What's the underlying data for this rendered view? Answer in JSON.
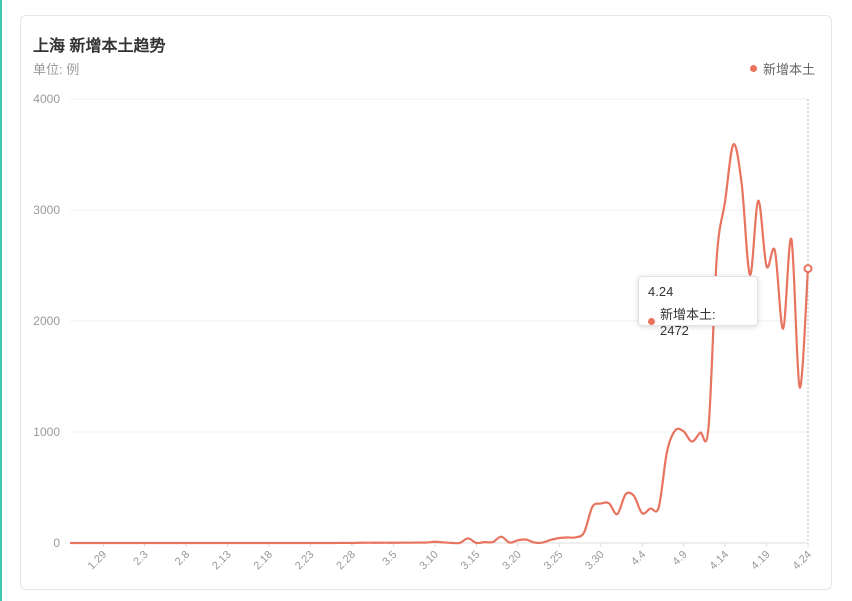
{
  "card": {
    "title": "上海 新增本土趋势",
    "subtitle": "单位: 例"
  },
  "colors": {
    "series": "#e8735f",
    "grid": "#f0f0f0",
    "axis": "#dddddd",
    "tick_text": "#999999"
  },
  "chart_data": {
    "type": "line",
    "title": "上海 新增本土趋势",
    "ylabel": "单位: 例",
    "ylim": [
      0,
      4000
    ],
    "yticks": [
      0,
      1000,
      2000,
      3000,
      4000
    ],
    "x_tick_labels": [
      "1.29",
      "2.3",
      "2.8",
      "2.13",
      "2.18",
      "2.23",
      "2.28",
      "3.5",
      "3.10",
      "3.15",
      "3.20",
      "3.25",
      "3.30",
      "4.4",
      "4.9",
      "4.14",
      "4.19",
      "4.24"
    ],
    "legend_position": "top-right",
    "grid": true,
    "series": [
      {
        "name": "新增本土",
        "x": [
          "1.25",
          "1.26",
          "1.27",
          "1.28",
          "1.29",
          "1.30",
          "1.31",
          "2.1",
          "2.2",
          "2.3",
          "2.4",
          "2.5",
          "2.6",
          "2.7",
          "2.8",
          "2.9",
          "2.10",
          "2.11",
          "2.12",
          "2.13",
          "2.14",
          "2.15",
          "2.16",
          "2.17",
          "2.18",
          "2.19",
          "2.20",
          "2.21",
          "2.22",
          "2.23",
          "2.24",
          "2.25",
          "2.26",
          "2.27",
          "2.28",
          "3.1",
          "3.2",
          "3.3",
          "3.4",
          "3.5",
          "3.6",
          "3.7",
          "3.8",
          "3.9",
          "3.10",
          "3.11",
          "3.12",
          "3.13",
          "3.14",
          "3.15",
          "3.16",
          "3.17",
          "3.18",
          "3.19",
          "3.20",
          "3.21",
          "3.22",
          "3.23",
          "3.24",
          "3.25",
          "3.26",
          "3.27",
          "3.28",
          "3.29",
          "3.30",
          "3.31",
          "4.1",
          "4.2",
          "4.3",
          "4.4",
          "4.5",
          "4.6",
          "4.7",
          "4.8",
          "4.9",
          "4.10",
          "4.11",
          "4.12",
          "4.13",
          "4.14",
          "4.15",
          "4.16",
          "4.17",
          "4.18",
          "4.19",
          "4.20",
          "4.21",
          "4.22",
          "4.23",
          "4.24"
        ],
        "values": [
          0,
          0,
          0,
          0,
          0,
          0,
          0,
          0,
          0,
          0,
          0,
          0,
          0,
          0,
          0,
          0,
          0,
          0,
          0,
          0,
          0,
          0,
          0,
          0,
          0,
          0,
          0,
          0,
          0,
          0,
          0,
          0,
          0,
          1,
          0,
          2,
          3,
          2,
          3,
          2,
          3,
          3,
          4,
          4,
          11,
          5,
          1,
          1,
          41,
          1,
          8,
          9,
          57,
          4,
          24,
          31,
          4,
          4,
          29,
          45,
          50,
          51,
          96,
          326,
          355,
          358,
          260,
          438,
          425,
          268,
          311,
          322,
          824,
          1015,
          1006,
          914,
          994,
          1040,
          2573,
          3078,
          3590,
          3238,
          2417,
          3084,
          2494,
          2634,
          1931,
          2736,
          1401,
          2472
        ]
      }
    ],
    "tooltip": {
      "date": "4.24",
      "label": "新增本土: 2472"
    }
  }
}
